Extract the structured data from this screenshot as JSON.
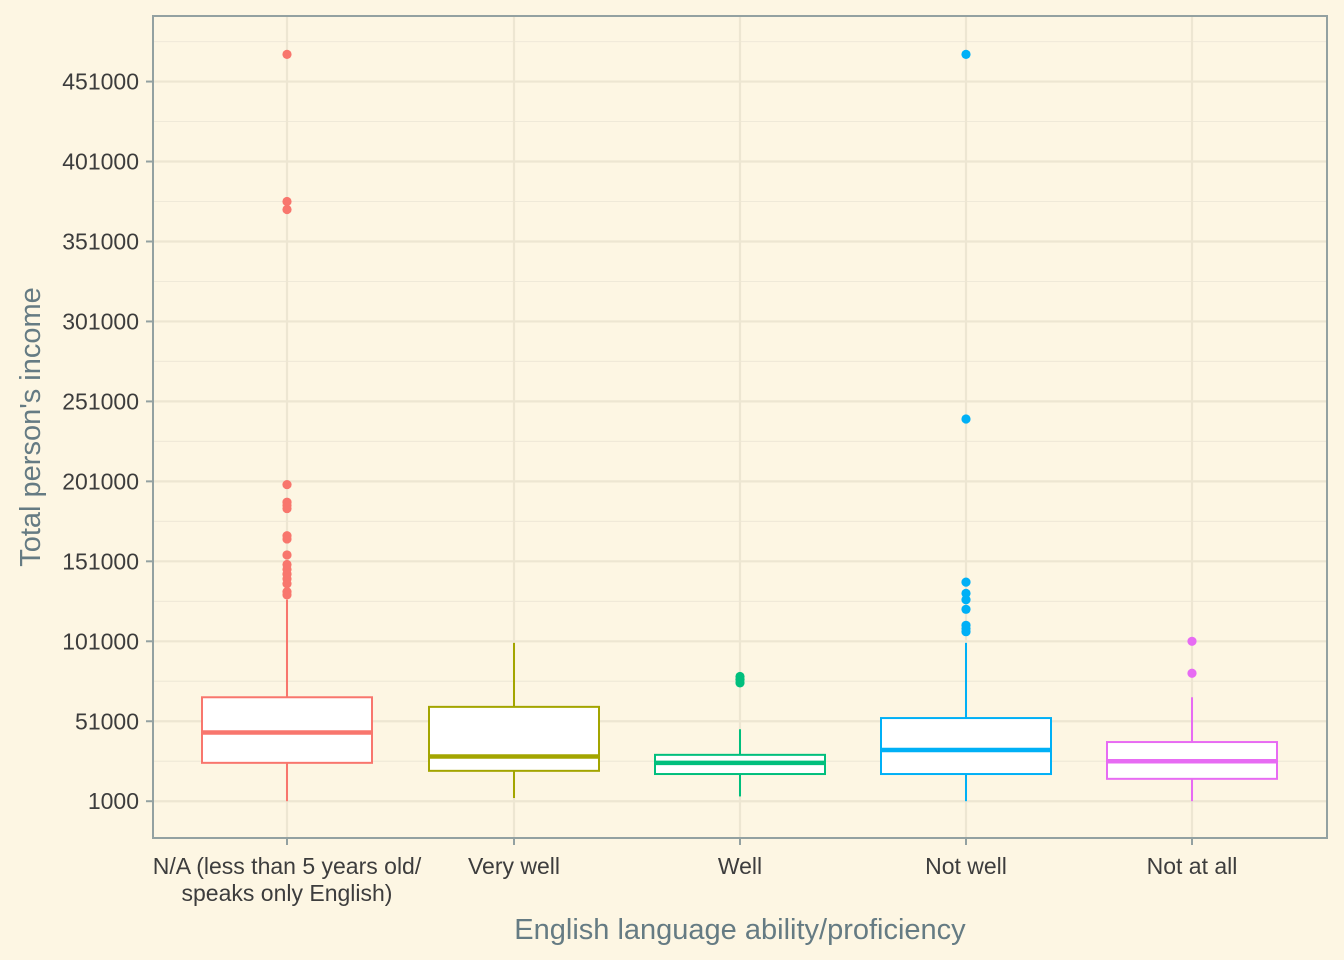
{
  "chart_data": {
    "type": "boxplot",
    "xlabel": "English language ability/proficiency",
    "ylabel": "Total person's income",
    "categories": [
      "N/A (less than 5 years old/\nspeaks only English)",
      "Very well",
      "Well",
      "Not well",
      "Not at all"
    ],
    "yticks": [
      1000,
      51000,
      101000,
      151000,
      201000,
      251000,
      301000,
      351000,
      401000,
      451000
    ],
    "ylim": [
      -22000,
      492000
    ],
    "grid": true,
    "legend": "none",
    "colors": [
      "#f8766d",
      "#a3a500",
      "#00bf7d",
      "#00b0f6",
      "#e76bf3"
    ],
    "boxes": [
      {
        "category": "N/A (less than 5 years old/ speaks only English)",
        "whisker_low": 1000,
        "q1": 25000,
        "median": 44000,
        "q3": 66000,
        "whisker_high": 127000,
        "outliers": [
          130000,
          132000,
          137000,
          140000,
          143000,
          146000,
          149000,
          155000,
          165000,
          167000,
          184000,
          186000,
          188000,
          199000,
          371000,
          376000,
          468000
        ]
      },
      {
        "category": "Very well",
        "whisker_low": 3000,
        "q1": 20000,
        "median": 29000,
        "q3": 60000,
        "whisker_high": 100000,
        "outliers": []
      },
      {
        "category": "Well",
        "whisker_low": 4000,
        "q1": 18000,
        "median": 25000,
        "q3": 30000,
        "whisker_high": 46000,
        "outliers": [
          75000,
          77000,
          79000
        ]
      },
      {
        "category": "Not well",
        "whisker_low": 1000,
        "q1": 18000,
        "median": 33000,
        "q3": 53000,
        "whisker_high": 100000,
        "outliers": [
          107000,
          109000,
          111000,
          121000,
          127000,
          131000,
          138000,
          240000,
          468000
        ]
      },
      {
        "category": "Not at all",
        "whisker_low": 1000,
        "q1": 15000,
        "median": 26000,
        "q3": 38000,
        "whisker_high": 66000,
        "outliers": [
          81000,
          101000
        ]
      }
    ]
  }
}
